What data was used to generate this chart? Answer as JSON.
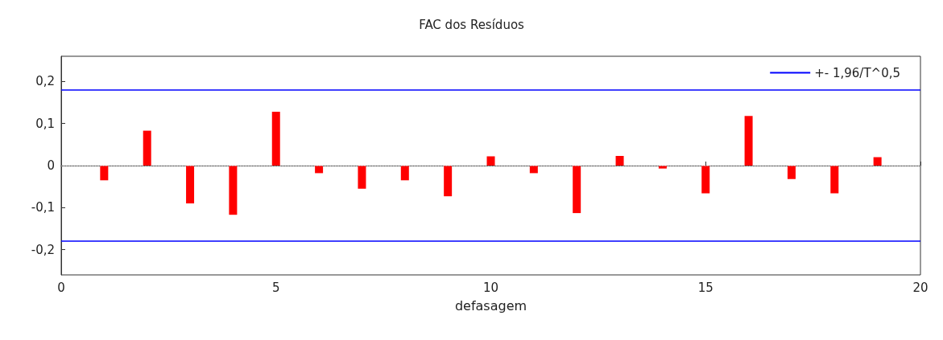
{
  "chart_data": {
    "type": "bar",
    "title": "FAC dos Resíduos",
    "xlabel": "defasagem",
    "x": [
      1,
      2,
      3,
      4,
      5,
      6,
      7,
      8,
      9,
      10,
      11,
      12,
      13,
      14,
      15,
      16,
      17,
      18,
      19
    ],
    "series": [
      {
        "color": "#ff0000",
        "values": [
          -0.035,
          0.083,
          -0.09,
          -0.117,
          0.128,
          -0.018,
          -0.055,
          -0.035,
          -0.073,
          0.022,
          -0.018,
          -0.113,
          0.023,
          -0.007,
          -0.066,
          0.118,
          -0.032,
          -0.066,
          0.02
        ]
      }
    ],
    "xlim": [
      0,
      20
    ],
    "xticks": [
      0,
      5,
      10,
      15,
      20
    ],
    "ylim": [
      -0.26,
      0.26
    ],
    "yticks": [
      {
        "value": -0.2,
        "label": "-0,2"
      },
      {
        "value": -0.1,
        "label": "-0,1"
      },
      {
        "value": 0,
        "label": "0"
      },
      {
        "value": 0.1,
        "label": "0,1"
      },
      {
        "value": 0.2,
        "label": "0,2"
      }
    ],
    "ref_lines": [
      {
        "axis": "y",
        "value": 0.18,
        "label": "+- 1,96/T^0,5",
        "color": "#0000ff",
        "line_style": "solid"
      },
      {
        "axis": "y",
        "value": -0.18,
        "label": null,
        "color": "#0000ff",
        "line_style": "solid"
      },
      {
        "axis": "y",
        "value": 0,
        "label": null,
        "color": "#aaaaaa",
        "line_style": "dotted"
      }
    ],
    "legend": "top right",
    "grid": false
  }
}
